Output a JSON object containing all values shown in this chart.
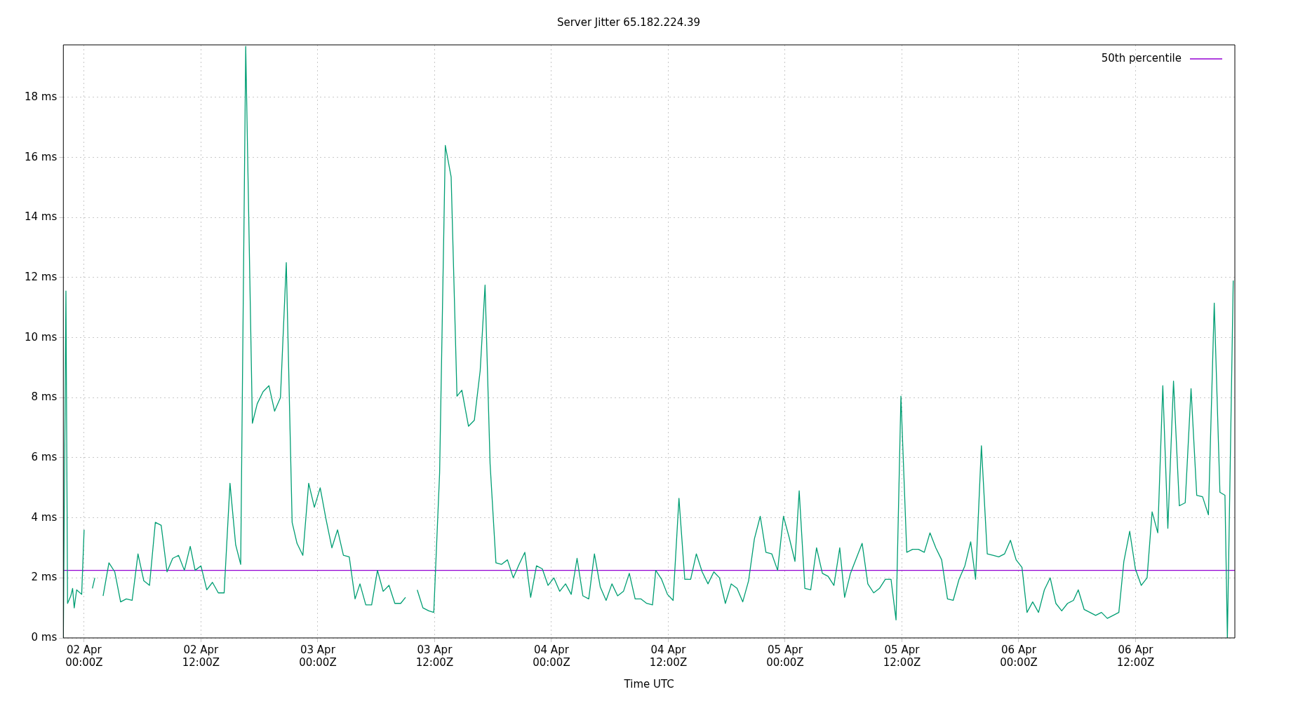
{
  "chart_data": {
    "type": "line",
    "title": "Server Jitter 65.182.224.39",
    "xlabel": "Time UTC",
    "grid": true,
    "legend": "top right",
    "line_style": "solid",
    "marker": "none",
    "xlim": [
      "--04-01T21:52",
      "--04-06T22:12"
    ],
    "xticks": [
      {
        "value": "--04-02T00:00",
        "label": "02 Apr\n00:00Z"
      },
      {
        "value": "--04-02T12:00",
        "label": "02 Apr\n12:00Z"
      },
      {
        "value": "--04-03T00:00",
        "label": "03 Apr\n00:00Z"
      },
      {
        "value": "--04-03T12:00",
        "label": "03 Apr\n12:00Z"
      },
      {
        "value": "--04-04T00:00",
        "label": "04 Apr\n00:00Z"
      },
      {
        "value": "--04-04T12:00",
        "label": "04 Apr\n12:00Z"
      },
      {
        "value": "--04-05T00:00",
        "label": "05 Apr\n00:00Z"
      },
      {
        "value": "--04-05T12:00",
        "label": "05 Apr\n12:00Z"
      },
      {
        "value": "--04-06T00:00",
        "label": "06 Apr\n00:00Z"
      },
      {
        "value": "--04-06T12:00",
        "label": "06 Apr\n12:00Z"
      }
    ],
    "ylim": [
      0,
      19.75
    ],
    "yticks": [
      {
        "value": 0,
        "label": "0 ms"
      },
      {
        "value": 2,
        "label": "2 ms"
      },
      {
        "value": 4,
        "label": "4 ms"
      },
      {
        "value": 6,
        "label": "6 ms"
      },
      {
        "value": 8,
        "label": "8 ms"
      },
      {
        "value": 10,
        "label": "10 ms"
      },
      {
        "value": 12,
        "label": "12 ms"
      },
      {
        "value": 14,
        "label": "14 ms"
      },
      {
        "value": 16,
        "label": "16 ms"
      },
      {
        "value": 18,
        "label": "18 ms"
      }
    ],
    "ref_lines": [
      {
        "axis": "y",
        "value": 2.25,
        "label": "50th percentile",
        "color": "#9400d3",
        "line_style": "solid"
      }
    ],
    "series": [
      {
        "color": "#009e73",
        "x": [
          "--04-01T21:52",
          "--04-01T22:08",
          "--04-01T22:18",
          "--04-01T22:38",
          "--04-01T22:49",
          "--04-01T22:59",
          "--04-01T23:14",
          "--04-01T23:45",
          "--04-02T00:00",
          "--04-02T00:25",
          "--04-02T00:51",
          "--04-02T01:06",
          "--04-02T01:31",
          "--04-02T01:57",
          "--04-02T02:33",
          "--04-02T03:09",
          "--04-02T03:45",
          "--04-02T04:20",
          "--04-02T04:56",
          "--04-02T05:32",
          "--04-02T06:08",
          "--04-02T06:43",
          "--04-02T07:19",
          "--04-02T07:55",
          "--04-02T08:31",
          "--04-02T09:06",
          "--04-02T09:42",
          "--04-02T10:18",
          "--04-02T10:54",
          "--04-02T11:24",
          "--04-02T12:00",
          "--04-02T12:36",
          "--04-02T13:11",
          "--04-02T13:47",
          "--04-02T14:23",
          "--04-02T14:59",
          "--04-02T15:34",
          "--04-02T16:05",
          "--04-02T16:36",
          "--04-02T17:17",
          "--04-02T17:47",
          "--04-02T18:23",
          "--04-02T18:59",
          "--04-02T19:34",
          "--04-02T20:10",
          "--04-02T20:46",
          "--04-02T21:22",
          "--04-02T21:52",
          "--04-02T22:28",
          "--04-02T23:04",
          "--04-02T23:39",
          "--04-03T00:15",
          "--04-03T00:51",
          "--04-03T01:27",
          "--04-03T02:02",
          "--04-03T02:38",
          "--04-03T03:14",
          "--04-03T03:50",
          "--04-03T04:20",
          "--04-03T04:56",
          "--04-03T05:32",
          "--04-03T06:08",
          "--04-03T06:43",
          "--04-03T07:19",
          "--04-03T07:55",
          "--04-03T08:31",
          "--04-03T09:01",
          "--04-03T09:37",
          "--04-03T10:13",
          "--04-03T10:48",
          "--04-03T11:24",
          "--04-03T11:55",
          "--04-03T12:31",
          "--04-03T13:06",
          "--04-03T13:42",
          "--04-03T14:18",
          "--04-03T14:48",
          "--04-03T15:29",
          "--04-03T16:05",
          "--04-03T16:41",
          "--04-03T17:11",
          "--04-03T17:42",
          "--04-03T18:18",
          "--04-03T18:53",
          "--04-03T19:29",
          "--04-03T20:05",
          "--04-03T20:41",
          "--04-03T21:16",
          "--04-03T21:52",
          "--04-03T22:28",
          "--04-03T23:04",
          "--04-03T23:39",
          "--04-04T00:15",
          "--04-04T00:51",
          "--04-04T01:27",
          "--04-04T02:02",
          "--04-04T02:38",
          "--04-04T03:14",
          "--04-04T03:50",
          "--04-04T04:25",
          "--04-04T05:01",
          "--04-04T05:37",
          "--04-04T06:13",
          "--04-04T06:48",
          "--04-04T07:24",
          "--04-04T08:00",
          "--04-04T08:36",
          "--04-04T09:11",
          "--04-04T09:47",
          "--04-04T10:23",
          "--04-04T10:43",
          "--04-04T11:19",
          "--04-04T11:55",
          "--04-04T12:30",
          "--04-04T13:06",
          "--04-04T13:42",
          "--04-04T14:18",
          "--04-04T14:53",
          "--04-04T15:29",
          "--04-04T16:05",
          "--04-04T16:41",
          "--04-04T17:16",
          "--04-04T17:52",
          "--04-04T18:28",
          "--04-04T19:04",
          "--04-04T19:39",
          "--04-04T20:15",
          "--04-04T20:51",
          "--04-04T21:27",
          "--04-04T22:02",
          "--04-04T22:38",
          "--04-04T23:14",
          "--04-04T23:50",
          "--04-05T00:25",
          "--04-05T01:01",
          "--04-05T01:27",
          "--04-05T02:02",
          "--04-05T02:38",
          "--04-05T03:14",
          "--04-05T03:50",
          "--04-05T04:25",
          "--04-05T05:01",
          "--04-05T05:37",
          "--04-05T06:07",
          "--04-05T06:43",
          "--04-05T07:19",
          "--04-05T07:55",
          "--04-05T08:30",
          "--04-05T09:06",
          "--04-05T09:42",
          "--04-05T10:18",
          "--04-05T10:53",
          "--04-05T11:24",
          "--04-05T11:54",
          "--04-05T12:30",
          "--04-05T13:06",
          "--04-05T13:42",
          "--04-05T14:18",
          "--04-05T14:53",
          "--04-05T15:29",
          "--04-05T16:05",
          "--04-05T16:41",
          "--04-05T17:16",
          "--04-05T17:52",
          "--04-05T18:28",
          "--04-05T19:04",
          "--04-05T19:34",
          "--04-05T20:10",
          "--04-05T20:46",
          "--04-05T21:21",
          "--04-05T21:57",
          "--04-05T22:33",
          "--04-05T23:09",
          "--04-05T23:44",
          "--04-06T00:20",
          "--04-06T00:51",
          "--04-06T01:26",
          "--04-06T02:02",
          "--04-06T02:38",
          "--04-06T03:14",
          "--04-06T03:49",
          "--04-06T04:25",
          "--04-06T05:01",
          "--04-06T05:37",
          "--04-06T06:07",
          "--04-06T06:43",
          "--04-06T07:19",
          "--04-06T07:54",
          "--04-06T08:30",
          "--04-06T09:06",
          "--04-06T09:42",
          "--04-06T10:17",
          "--04-06T10:48",
          "--04-06T11:24",
          "--04-06T11:59",
          "--04-06T12:35",
          "--04-06T13:11",
          "--04-06T13:42",
          "--04-06T14:17",
          "--04-06T14:48",
          "--04-06T15:19",
          "--04-06T15:54",
          "--04-06T16:30",
          "--04-06T17:06",
          "--04-06T17:42",
          "--04-06T18:17",
          "--04-06T18:53",
          "--04-06T19:29",
          "--04-06T20:05",
          "--04-06T20:40",
          "--04-06T21:11",
          "--04-06T21:26",
          "--04-06T22:02"
        ],
        "values": [
          0,
          11.55,
          1.15,
          1.4,
          1.65,
          1.0,
          1.6,
          1.45,
          3.6,
          null,
          1.65,
          2.0,
          null,
          1.4,
          2.5,
          2.2,
          1.2,
          1.3,
          1.25,
          2.8,
          1.9,
          1.75,
          3.85,
          3.75,
          2.2,
          2.65,
          2.75,
          2.25,
          3.05,
          2.25,
          2.4,
          1.6,
          1.85,
          1.5,
          1.5,
          5.15,
          3.1,
          2.45,
          19.7,
          7.15,
          7.8,
          8.2,
          8.4,
          7.55,
          8.0,
          12.5,
          3.85,
          3.15,
          2.75,
          5.15,
          4.35,
          5.0,
          3.95,
          3.0,
          3.6,
          2.75,
          2.7,
          1.3,
          1.8,
          1.1,
          1.1,
          2.25,
          1.55,
          1.75,
          1.15,
          1.15,
          1.35,
          null,
          1.6,
          1.0,
          0.9,
          0.85,
          5.5,
          16.4,
          15.35,
          8.05,
          8.25,
          7.05,
          7.25,
          8.9,
          11.75,
          5.8,
          2.5,
          2.45,
          2.6,
          2.0,
          2.45,
          2.85,
          1.35,
          2.4,
          2.3,
          1.75,
          2.0,
          1.55,
          1.8,
          1.45,
          2.65,
          1.4,
          1.3,
          2.8,
          1.7,
          1.25,
          1.8,
          1.4,
          1.55,
          2.15,
          1.3,
          1.3,
          1.15,
          1.1,
          2.25,
          1.95,
          1.45,
          1.25,
          4.65,
          1.95,
          1.95,
          2.8,
          2.2,
          1.8,
          2.2,
          2.0,
          1.15,
          1.8,
          1.65,
          1.2,
          1.9,
          3.3,
          4.05,
          2.85,
          2.8,
          2.25,
          4.05,
          3.35,
          2.55,
          4.9,
          1.65,
          1.6,
          3.0,
          2.15,
          2.05,
          1.75,
          3.0,
          1.35,
          2.15,
          2.65,
          3.15,
          1.8,
          1.5,
          1.65,
          1.95,
          1.95,
          0.6,
          8.05,
          2.85,
          2.95,
          2.95,
          2.85,
          3.5,
          3.0,
          2.6,
          1.3,
          1.25,
          1.95,
          2.4,
          3.2,
          1.95,
          6.4,
          2.8,
          2.75,
          2.7,
          2.8,
          3.25,
          2.6,
          2.35,
          0.85,
          1.2,
          0.85,
          1.6,
          2.0,
          1.15,
          0.9,
          1.15,
          1.25,
          1.6,
          0.95,
          0.85,
          0.75,
          0.85,
          0.65,
          0.75,
          0.85,
          2.55,
          3.55,
          2.3,
          1.75,
          2.0,
          4.2,
          3.5,
          8.4,
          3.65,
          8.55,
          4.4,
          4.5,
          8.3,
          4.75,
          4.7,
          4.1,
          11.15,
          4.85,
          4.75,
          0,
          11.9
        ]
      }
    ]
  }
}
